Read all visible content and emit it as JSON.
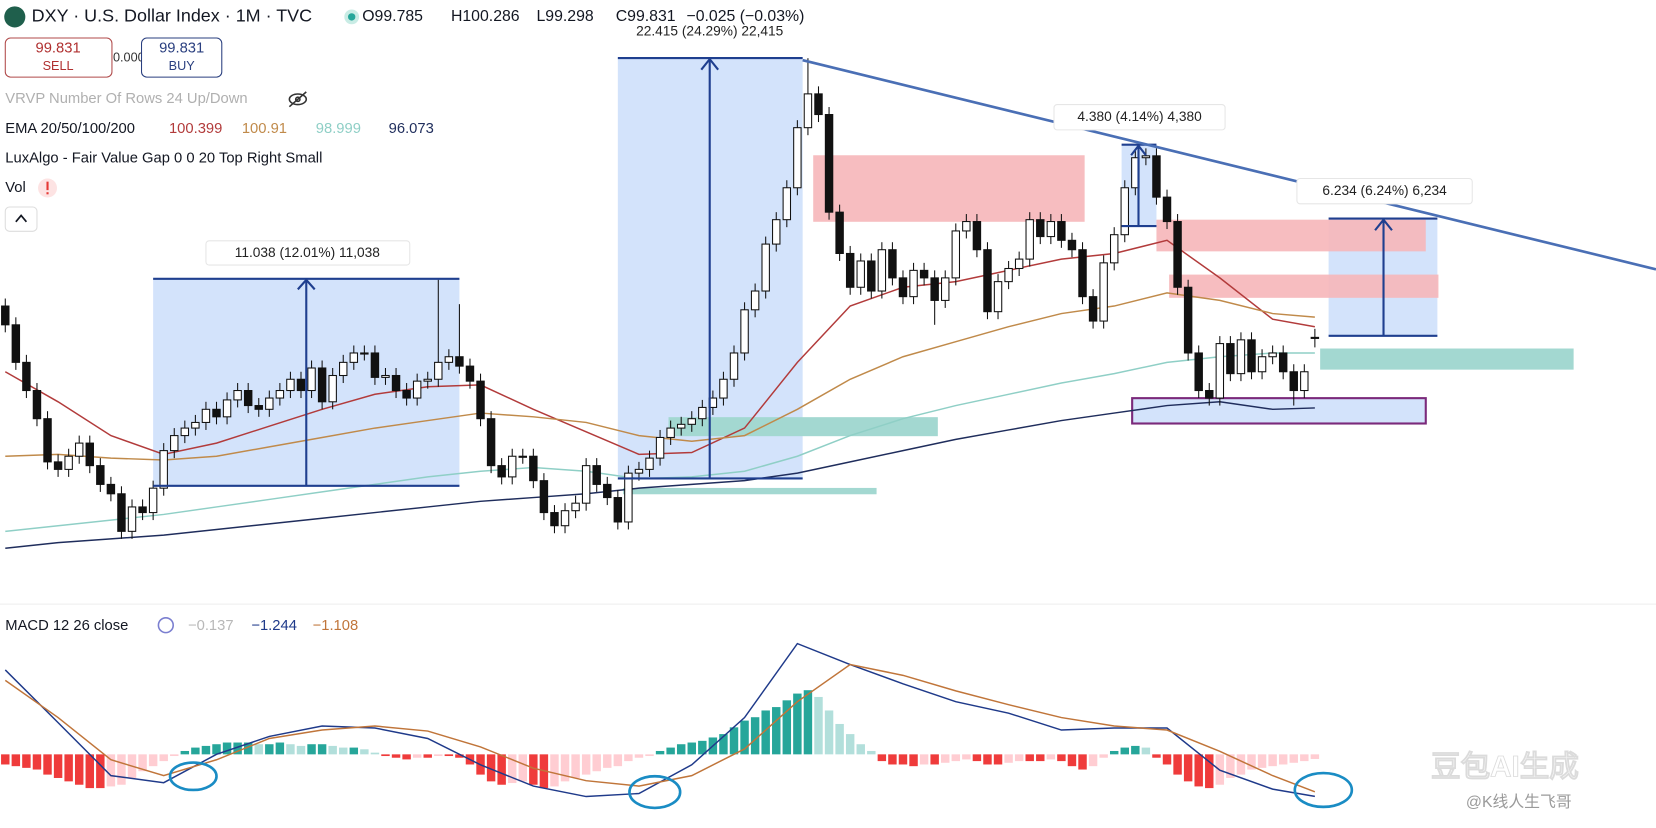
{
  "chart_data": [
    {
      "type": "candlestick",
      "title": "DXY · U.S. Dollar Index · 1M · TVC",
      "ohlc_labels": [
        "O99.785",
        "H100.286",
        "L99.298",
        "C99.831"
      ],
      "change": "−0.025 (−0.03%)",
      "sell": {
        "price": "99.831",
        "label": "SELL"
      },
      "spread": "0.000",
      "buy": {
        "price": "99.831",
        "label": "BUY"
      },
      "vrvp": "VRVP Number Of Rows 24 Up/Down",
      "ema_label": "EMA 20/50/100/200",
      "fvg": "LuxAlgo - Fair Value Gap 0 0 20 Top Right Small",
      "vol": "Vol",
      "measurements": [
        "11.038 (12.01%) 11,038",
        "22.415 (24.29%) 22,415",
        "4.380 (4.14%) 4,380",
        "6.234 (6.24%) 6,234"
      ],
      "watermark": "豆包AI生成",
      "credit": "@K线人生飞哥",
      "ylim": [
        86.3,
        117.8
      ],
      "up_color": "#ffffff",
      "down_color": "#111111",
      "ohlc": [
        [
          101.5,
          101.9,
          100.1,
          100.5
        ],
        [
          100.5,
          100.9,
          98.1,
          98.5
        ],
        [
          98.5,
          98.9,
          96.6,
          97.0
        ],
        [
          97.0,
          97.4,
          95.1,
          95.5
        ],
        [
          95.5,
          95.9,
          92.8,
          93.2
        ],
        [
          93.2,
          93.6,
          92.4,
          92.8
        ],
        [
          92.8,
          93.9,
          92.4,
          93.5
        ],
        [
          93.5,
          94.6,
          93.1,
          94.2
        ],
        [
          94.2,
          94.6,
          92.6,
          93.0
        ],
        [
          93.0,
          93.4,
          91.6,
          92.0
        ],
        [
          92.0,
          92.4,
          91.1,
          91.5
        ],
        [
          91.5,
          91.9,
          89.1,
          89.5
        ],
        [
          89.5,
          91.2,
          89.1,
          90.8
        ],
        [
          90.8,
          91.2,
          90.1,
          90.5
        ],
        [
          90.5,
          92.2,
          90.1,
          91.8
        ],
        [
          91.8,
          94.2,
          91.4,
          93.8
        ],
        [
          93.8,
          95.0,
          93.4,
          94.6
        ],
        [
          94.6,
          95.4,
          94.2,
          95.0
        ],
        [
          95.0,
          95.7,
          94.6,
          95.3
        ],
        [
          95.3,
          96.4,
          94.9,
          96.0
        ],
        [
          96.0,
          96.4,
          95.2,
          95.6
        ],
        [
          95.6,
          96.9,
          95.2,
          96.5
        ],
        [
          96.5,
          97.4,
          96.1,
          97.0
        ],
        [
          97.0,
          97.4,
          95.8,
          96.2
        ],
        [
          96.2,
          96.6,
          95.6,
          96.0
        ],
        [
          96.0,
          97.0,
          95.6,
          96.6
        ],
        [
          96.6,
          97.4,
          96.2,
          97.0
        ],
        [
          97.0,
          98.0,
          96.6,
          97.6
        ],
        [
          97.6,
          98.0,
          96.6,
          97.0
        ],
        [
          97.0,
          98.6,
          96.6,
          98.2
        ],
        [
          98.2,
          98.6,
          96.0,
          96.4
        ],
        [
          96.4,
          98.2,
          96.0,
          97.8
        ],
        [
          97.8,
          98.9,
          97.4,
          98.5
        ],
        [
          98.5,
          99.4,
          98.1,
          99.0
        ],
        [
          99.0,
          99.4,
          98.6,
          99.0
        ],
        [
          99.0,
          99.4,
          97.3,
          97.7
        ],
        [
          97.7,
          98.2,
          97.3,
          97.8
        ],
        [
          97.8,
          98.2,
          96.6,
          97.0
        ],
        [
          97.0,
          97.4,
          96.2,
          96.6
        ],
        [
          96.6,
          97.9,
          96.2,
          97.5
        ],
        [
          97.5,
          98.0,
          97.1,
          97.6
        ],
        [
          97.6,
          102.9,
          97.2,
          98.5
        ],
        [
          98.5,
          99.2,
          98.1,
          98.8
        ],
        [
          98.8,
          101.6,
          97.9,
          98.3
        ],
        [
          98.3,
          98.7,
          97.1,
          97.5
        ],
        [
          97.5,
          97.9,
          95.1,
          95.5
        ],
        [
          95.5,
          95.9,
          92.6,
          93.0
        ],
        [
          93.0,
          93.4,
          92.0,
          92.4
        ],
        [
          92.4,
          93.9,
          92.0,
          93.5
        ],
        [
          93.5,
          93.9,
          93.1,
          93.5
        ],
        [
          93.5,
          93.9,
          91.8,
          92.2
        ],
        [
          92.2,
          92.6,
          90.1,
          90.5
        ],
        [
          90.5,
          90.9,
          89.4,
          89.8
        ],
        [
          89.8,
          91.0,
          89.4,
          90.6
        ],
        [
          90.6,
          91.4,
          90.2,
          91.0
        ],
        [
          91.0,
          93.4,
          90.6,
          93.0
        ],
        [
          93.0,
          93.4,
          91.6,
          92.0
        ],
        [
          92.0,
          92.4,
          90.9,
          91.3
        ],
        [
          91.3,
          91.7,
          89.6,
          90.0
        ],
        [
          90.0,
          93.0,
          89.6,
          92.6
        ],
        [
          92.6,
          93.2,
          92.2,
          92.8
        ],
        [
          92.8,
          93.8,
          92.4,
          93.4
        ],
        [
          93.4,
          94.9,
          93.0,
          94.5
        ],
        [
          94.5,
          95.4,
          94.1,
          95.0
        ],
        [
          95.0,
          95.6,
          94.6,
          95.2
        ],
        [
          95.2,
          95.9,
          94.8,
          95.5
        ],
        [
          95.5,
          96.5,
          95.1,
          96.1
        ],
        [
          96.1,
          97.0,
          95.7,
          96.6
        ],
        [
          96.6,
          98.0,
          96.2,
          97.6
        ],
        [
          97.6,
          99.4,
          97.2,
          99.0
        ],
        [
          99.0,
          101.7,
          98.6,
          101.3
        ],
        [
          101.3,
          102.7,
          100.9,
          102.3
        ],
        [
          102.3,
          105.2,
          101.9,
          104.8
        ],
        [
          104.8,
          106.5,
          104.4,
          106.1
        ],
        [
          106.1,
          108.2,
          105.7,
          107.8
        ],
        [
          107.8,
          111.4,
          107.4,
          111.0
        ],
        [
          111.0,
          114.7,
          110.6,
          112.8
        ],
        [
          112.8,
          113.2,
          111.3,
          111.7
        ],
        [
          111.7,
          112.1,
          106.1,
          106.5
        ],
        [
          106.5,
          106.9,
          103.9,
          104.3
        ],
        [
          104.3,
          104.7,
          102.1,
          102.5
        ],
        [
          102.5,
          104.3,
          102.1,
          103.9
        ],
        [
          103.9,
          104.3,
          101.9,
          102.3
        ],
        [
          102.3,
          104.9,
          101.9,
          104.5
        ],
        [
          104.5,
          104.9,
          102.6,
          103.0
        ],
        [
          103.0,
          103.4,
          101.6,
          102.0
        ],
        [
          102.0,
          103.8,
          101.6,
          103.4
        ],
        [
          103.4,
          103.8,
          102.6,
          103.0
        ],
        [
          103.0,
          103.4,
          100.5,
          101.8
        ],
        [
          101.8,
          103.4,
          101.4,
          103.0
        ],
        [
          103.0,
          105.9,
          102.6,
          105.5
        ],
        [
          105.5,
          106.4,
          105.1,
          106.0
        ],
        [
          106.0,
          106.4,
          104.1,
          104.5
        ],
        [
          104.5,
          104.9,
          100.8,
          101.2
        ],
        [
          101.2,
          103.2,
          100.8,
          102.8
        ],
        [
          102.8,
          103.9,
          102.4,
          103.5
        ],
        [
          103.5,
          104.4,
          103.1,
          104.0
        ],
        [
          104.0,
          106.5,
          103.6,
          106.1
        ],
        [
          106.1,
          106.5,
          104.8,
          105.2
        ],
        [
          105.2,
          106.4,
          104.8,
          106.0
        ],
        [
          106.0,
          106.4,
          104.6,
          105.0
        ],
        [
          105.0,
          105.4,
          104.1,
          104.5
        ],
        [
          104.5,
          104.9,
          101.6,
          102.0
        ],
        [
          102.0,
          102.4,
          100.3,
          100.7
        ],
        [
          100.7,
          104.2,
          100.3,
          103.8
        ],
        [
          103.8,
          105.7,
          103.4,
          105.3
        ],
        [
          105.3,
          108.2,
          104.9,
          107.8
        ],
        [
          107.8,
          109.8,
          107.4,
          109.4
        ],
        [
          109.4,
          109.9,
          109.0,
          109.5
        ],
        [
          109.5,
          109.9,
          106.9,
          107.3
        ],
        [
          107.3,
          107.7,
          105.6,
          106.0
        ],
        [
          106.0,
          106.4,
          102.1,
          102.5
        ],
        [
          102.5,
          102.9,
          98.6,
          99.0
        ],
        [
          99.0,
          99.4,
          96.6,
          97.0
        ],
        [
          97.0,
          97.4,
          96.2,
          96.6
        ],
        [
          96.6,
          99.9,
          96.2,
          99.5
        ],
        [
          99.5,
          99.9,
          97.5,
          97.9
        ],
        [
          97.9,
          100.1,
          97.5,
          99.7
        ],
        [
          99.7,
          100.1,
          97.6,
          98.0
        ],
        [
          98.0,
          99.2,
          97.6,
          98.8
        ],
        [
          98.8,
          99.4,
          98.4,
          99.0
        ],
        [
          99.0,
          99.4,
          97.6,
          98.0
        ],
        [
          98.0,
          98.4,
          96.2,
          97.0
        ],
        [
          97.0,
          98.4,
          96.6,
          98.0
        ],
        [
          99.785,
          100.286,
          99.298,
          99.831
        ]
      ],
      "series": [
        {
          "color": "#b23b3b",
          "last": 100.399,
          "x": [
            0,
            5,
            10,
            15,
            20,
            25,
            30,
            35,
            40,
            45,
            50,
            55,
            60,
            65,
            70,
            75,
            80,
            85,
            90,
            95,
            100,
            105,
            110,
            115,
            120,
            124
          ],
          "values": [
            98.0,
            96.4,
            94.6,
            93.6,
            94.2,
            95.1,
            96.0,
            96.8,
            97.2,
            97.3,
            96.0,
            94.8,
            93.6,
            93.7,
            95.0,
            98.5,
            101.5,
            102.5,
            102.8,
            103.4,
            104.0,
            104.3,
            105.0,
            103.0,
            100.8,
            100.399
          ]
        },
        {
          "color": "#c08a4a",
          "last": 100.91,
          "x": [
            0,
            5,
            10,
            15,
            20,
            25,
            30,
            35,
            40,
            45,
            50,
            55,
            60,
            65,
            70,
            75,
            80,
            85,
            90,
            95,
            100,
            105,
            110,
            115,
            120,
            124
          ],
          "values": [
            93.5,
            93.6,
            93.4,
            93.3,
            93.5,
            94.0,
            94.5,
            95.0,
            95.4,
            95.8,
            95.6,
            95.3,
            94.6,
            94.3,
            94.6,
            96.0,
            97.6,
            98.8,
            99.6,
            100.4,
            101.1,
            101.5,
            102.2,
            101.8,
            101.1,
            100.91
          ]
        },
        {
          "color": "#8fcfc6",
          "last": 98.999,
          "x": [
            0,
            5,
            10,
            15,
            20,
            25,
            30,
            35,
            40,
            45,
            50,
            55,
            60,
            65,
            70,
            75,
            80,
            85,
            90,
            95,
            100,
            105,
            110,
            115,
            120,
            124
          ],
          "values": [
            89.5,
            89.8,
            90.1,
            90.4,
            90.8,
            91.2,
            91.6,
            92.0,
            92.4,
            92.7,
            92.9,
            92.7,
            92.3,
            92.4,
            92.7,
            93.5,
            94.6,
            95.5,
            96.2,
            96.8,
            97.4,
            97.9,
            98.5,
            98.8,
            99.0,
            98.999
          ]
        },
        {
          "color": "#1f2d5c",
          "last": 96.073,
          "x": [
            0,
            5,
            10,
            15,
            20,
            25,
            30,
            35,
            40,
            45,
            50,
            55,
            60,
            65,
            70,
            75,
            80,
            85,
            90,
            95,
            100,
            105,
            110,
            115,
            120,
            124
          ],
          "values": [
            88.6,
            88.9,
            89.1,
            89.3,
            89.6,
            89.9,
            90.2,
            90.5,
            90.8,
            91.1,
            91.3,
            91.5,
            91.8,
            92.0,
            92.2,
            92.6,
            93.2,
            93.8,
            94.4,
            94.9,
            95.4,
            95.8,
            96.2,
            96.4,
            96.0,
            96.073
          ]
        }
      ]
    },
    {
      "type": "macd",
      "title": "MACD 12 26 close",
      "legend_values": [
        "−0.137",
        "−1.244",
        "−1.108"
      ],
      "ylim": [
        -1.9,
        4.2
      ],
      "histogram": [
        -0.3,
        -0.35,
        -0.4,
        -0.45,
        -0.6,
        -0.7,
        -0.8,
        -0.9,
        -1.0,
        -1.0,
        -0.95,
        -0.9,
        -0.7,
        -0.5,
        -0.35,
        -0.2,
        -0.05,
        0.1,
        0.2,
        0.25,
        0.3,
        0.35,
        0.35,
        0.35,
        0.3,
        0.3,
        0.35,
        0.3,
        0.25,
        0.3,
        0.3,
        0.25,
        0.2,
        0.2,
        0.15,
        0.05,
        -0.05,
        -0.1,
        -0.15,
        -0.1,
        -0.1,
        -0.05,
        -0.05,
        -0.1,
        -0.3,
        -0.6,
        -0.8,
        -0.9,
        -0.85,
        -0.8,
        -0.9,
        -1.0,
        -0.95,
        -0.8,
        -0.7,
        -0.6,
        -0.5,
        -0.4,
        -0.35,
        -0.2,
        -0.1,
        -0.05,
        0.1,
        0.2,
        0.3,
        0.35,
        0.4,
        0.5,
        0.6,
        0.8,
        1.0,
        1.1,
        1.3,
        1.4,
        1.6,
        1.8,
        1.9,
        1.7,
        1.3,
        0.9,
        0.6,
        0.3,
        0.1,
        -0.2,
        -0.3,
        -0.3,
        -0.35,
        -0.3,
        -0.3,
        -0.25,
        -0.2,
        -0.15,
        -0.2,
        -0.3,
        -0.3,
        -0.25,
        -0.2,
        -0.2,
        -0.2,
        -0.15,
        -0.2,
        -0.35,
        -0.45,
        -0.35,
        -0.1,
        0.1,
        0.2,
        0.25,
        0.2,
        -0.1,
        -0.3,
        -0.6,
        -0.8,
        -0.95,
        -1.0,
        -0.9,
        -0.7,
        -0.6,
        -0.45,
        -0.4,
        -0.35,
        -0.3,
        -0.25,
        -0.2,
        -0.137
      ],
      "hist_colors": {
        "up_strong": "#26a69a",
        "up_weak": "#b2dfdb",
        "down_strong": "#ef3b3b",
        "down_weak": "#ffcdd2"
      },
      "series": [
        {
          "color": "#1f3a8a",
          "x": [
            0,
            5,
            10,
            15,
            20,
            25,
            30,
            35,
            40,
            45,
            50,
            55,
            60,
            65,
            70,
            75,
            80,
            85,
            90,
            95,
            100,
            105,
            110,
            115,
            120,
            124
          ],
          "values": [
            2.5,
            0.94,
            -0.63,
            -0.84,
            0,
            0.53,
            0.84,
            0.78,
            0.47,
            -0.31,
            -0.94,
            -1.25,
            -1.16,
            -0.31,
            1.09,
            3.28,
            2.66,
            2.09,
            1.56,
            1.22,
            0.72,
            0.78,
            0.78,
            -0.47,
            -1.03,
            -1.244
          ]
        },
        {
          "color": "#c0753a",
          "x": [
            0,
            5,
            10,
            15,
            20,
            25,
            30,
            35,
            40,
            45,
            50,
            55,
            60,
            65,
            70,
            75,
            80,
            85,
            90,
            95,
            100,
            105,
            110,
            115,
            120,
            124
          ],
          "values": [
            2.19,
            1.09,
            -0.16,
            -0.63,
            -0.16,
            0.47,
            0.72,
            0.84,
            0.69,
            0.22,
            -0.41,
            -0.78,
            -0.94,
            -0.63,
            0.16,
            1.56,
            2.66,
            2.34,
            1.88,
            1.47,
            1.09,
            0.84,
            0.72,
            0.09,
            -0.63,
            -1.108
          ]
        }
      ]
    }
  ]
}
